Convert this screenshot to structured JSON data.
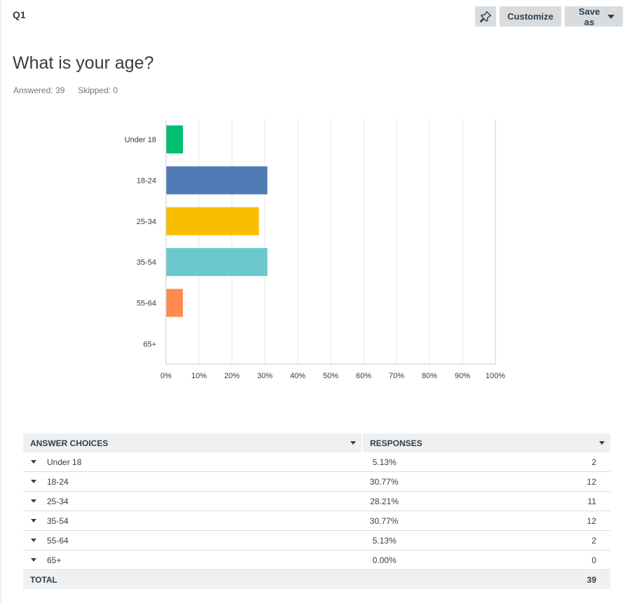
{
  "header": {
    "question_number": "Q1",
    "customize_label": "Customize",
    "save_as_label": "Save as",
    "pin_icon": "pin-icon"
  },
  "question": {
    "title": "What is your age?",
    "answered": "Answered: 39",
    "skipped": "Skipped: 0"
  },
  "chart_data": {
    "type": "bar",
    "orientation": "horizontal",
    "categories": [
      "Under 18",
      "18-24",
      "25-34",
      "35-54",
      "55-64",
      "65+"
    ],
    "values": [
      5.13,
      30.77,
      28.21,
      30.77,
      5.13,
      0.0
    ],
    "colors": [
      "#00bf6f",
      "#507cb6",
      "#f9be00",
      "#6bc8cd",
      "#ff8b4f",
      "#7d5e90"
    ],
    "xlim": [
      0,
      100
    ],
    "xticks": [
      "0%",
      "10%",
      "20%",
      "30%",
      "40%",
      "50%",
      "60%",
      "70%",
      "80%",
      "90%",
      "100%"
    ],
    "grid": true,
    "title": "",
    "xlabel": "",
    "ylabel": ""
  },
  "table": {
    "col_answer": "ANSWER CHOICES",
    "col_responses": "RESPONSES",
    "rows": [
      {
        "choice": "Under 18",
        "pct": "5.13%",
        "count": "2"
      },
      {
        "choice": "18-24",
        "pct": "30.77%",
        "count": "12"
      },
      {
        "choice": "25-34",
        "pct": "28.21%",
        "count": "11"
      },
      {
        "choice": "35-54",
        "pct": "30.77%",
        "count": "12"
      },
      {
        "choice": "55-64",
        "pct": "5.13%",
        "count": "2"
      },
      {
        "choice": "65+",
        "pct": "0.00%",
        "count": "0"
      }
    ],
    "total_label": "TOTAL",
    "total_count": "39"
  }
}
